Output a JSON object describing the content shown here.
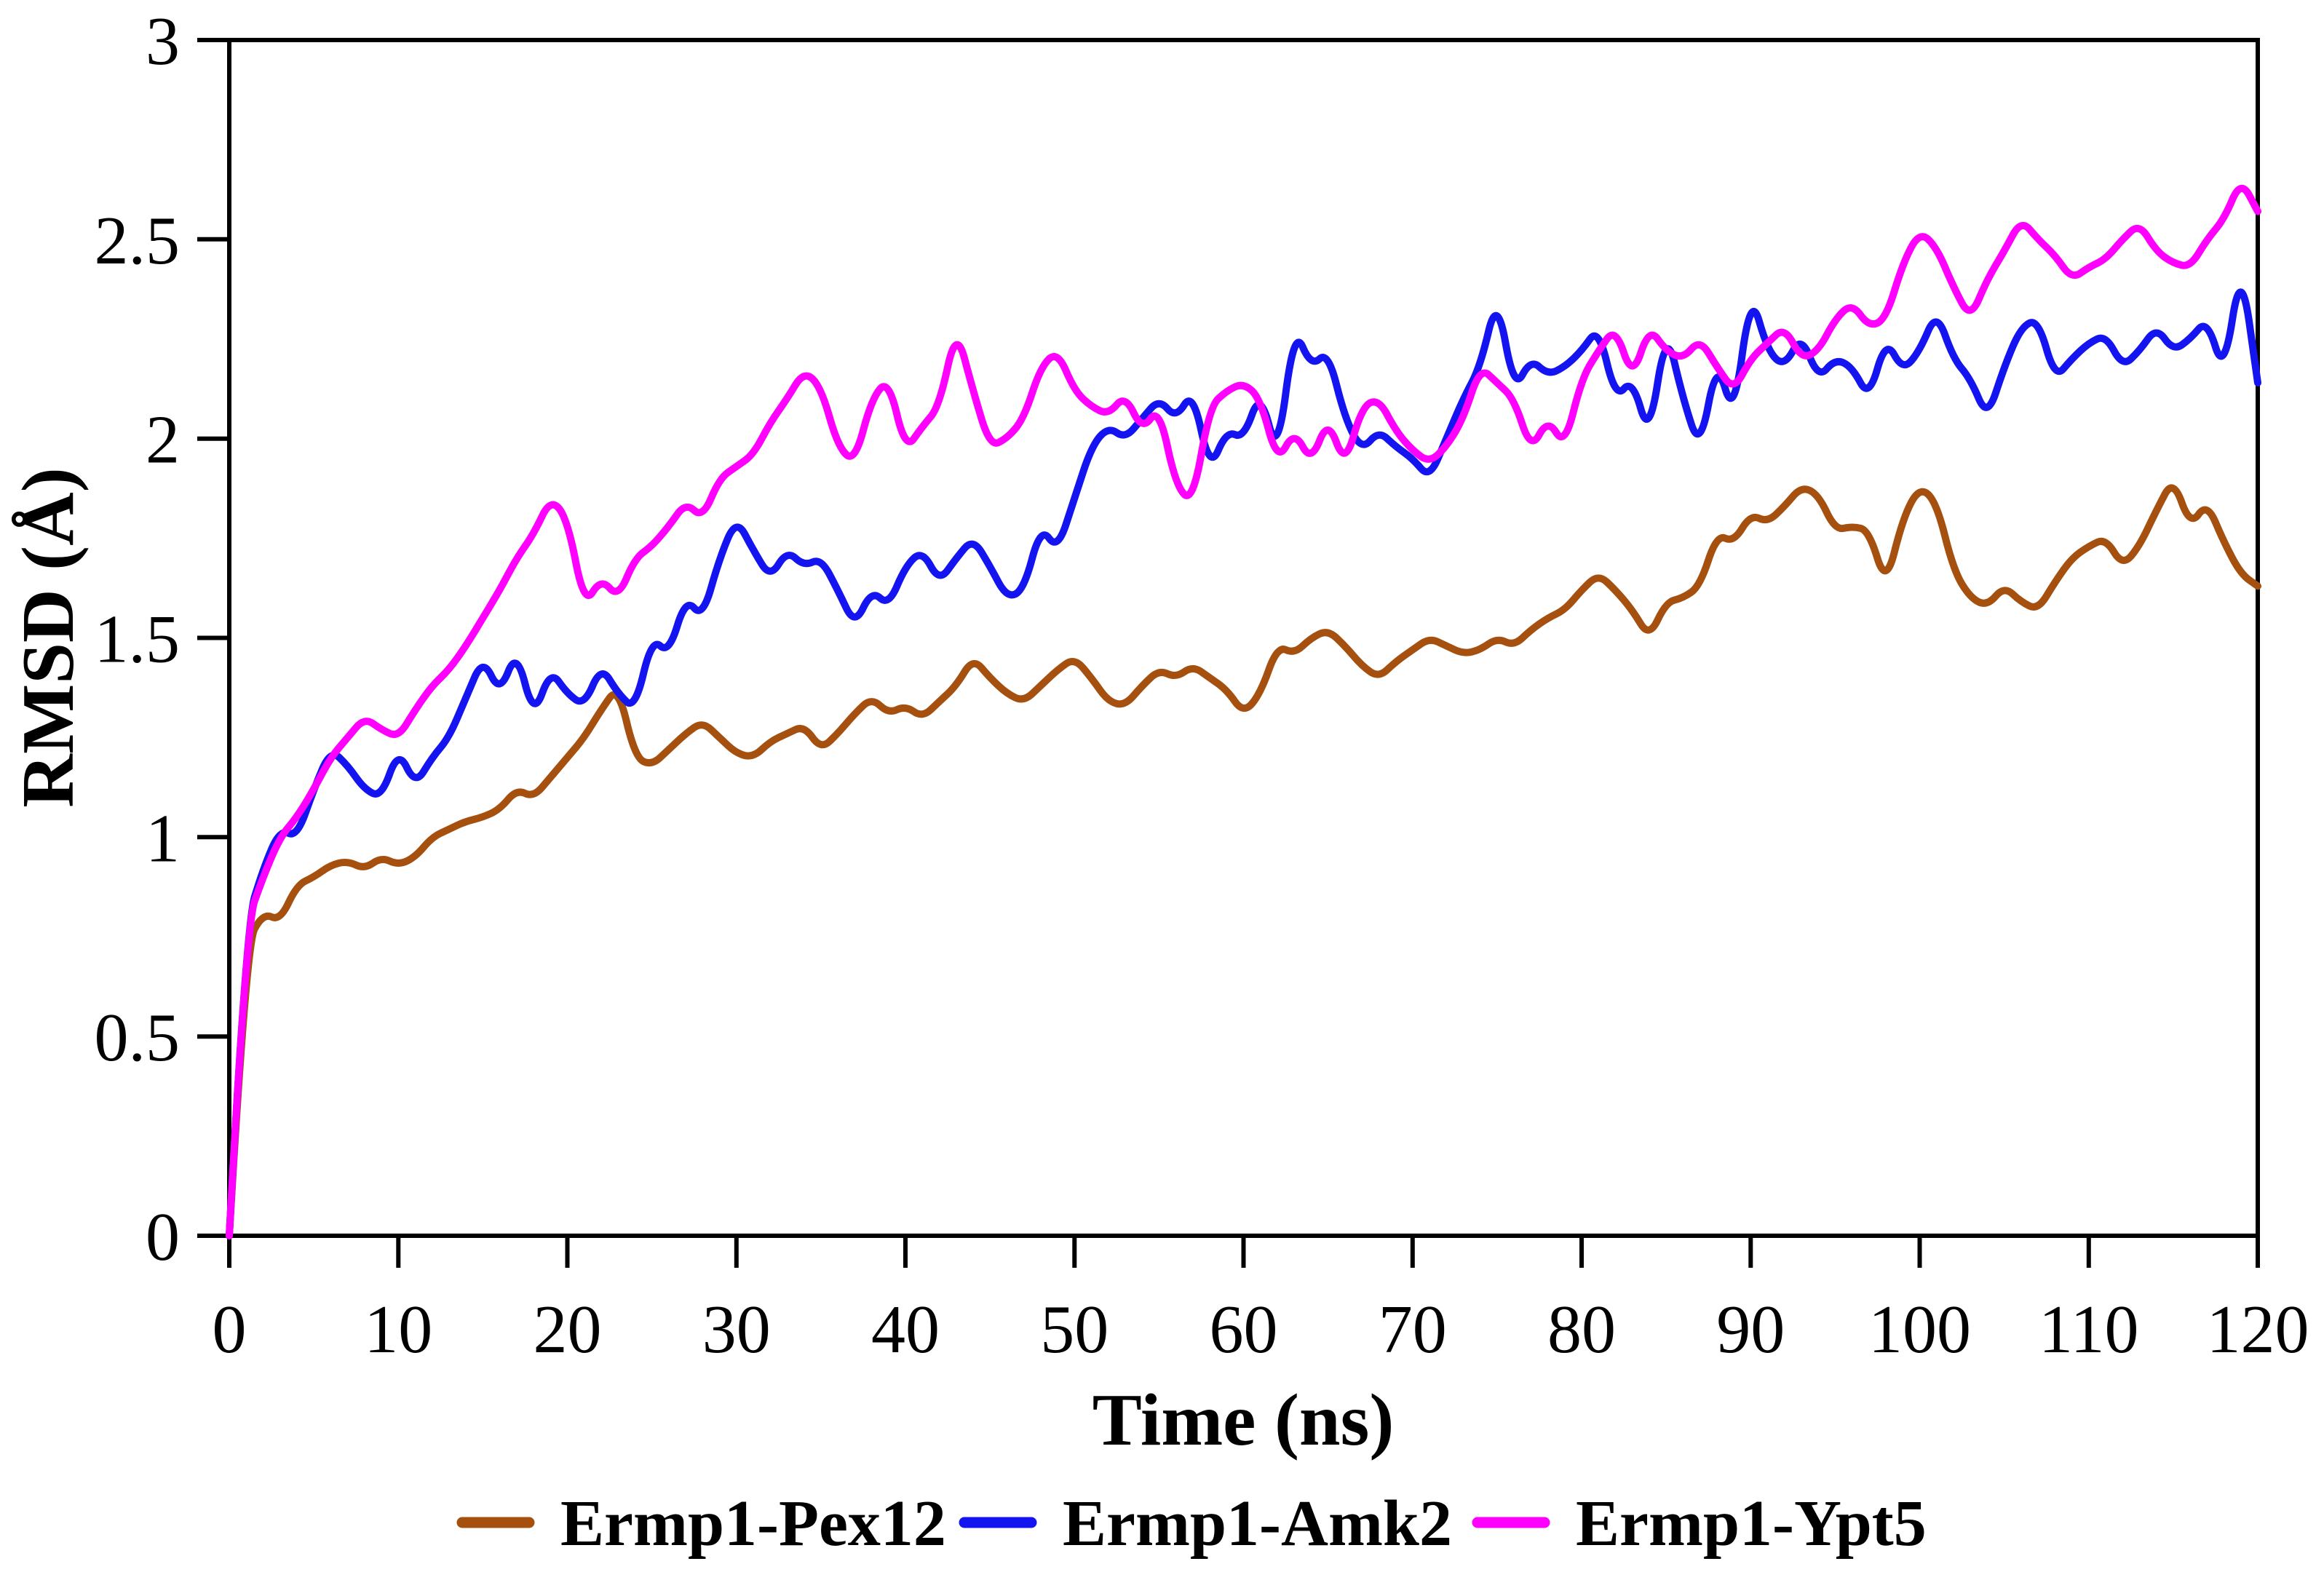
{
  "chart_data": {
    "type": "line",
    "title": "",
    "xlabel": "Time (ns)",
    "ylabel": "RMSD (Å)",
    "xlim": [
      0,
      120
    ],
    "ylim": [
      0,
      3
    ],
    "xticks": [
      0,
      10,
      20,
      30,
      40,
      50,
      60,
      70,
      80,
      90,
      100,
      110,
      120
    ],
    "yticks": [
      0,
      0.5,
      1,
      1.5,
      2,
      2.5,
      3
    ],
    "ytick_labels": [
      "0",
      "0.5",
      "1",
      "1.5",
      "2",
      "2.5",
      "3"
    ],
    "grid": false,
    "legend_position": "bottom",
    "x_step": 1,
    "series": [
      {
        "name": "Ermp1-Pex12",
        "color": "#A5500F",
        "values": [
          0,
          0.73,
          0.81,
          0.79,
          0.88,
          0.9,
          0.93,
          0.94,
          0.92,
          0.95,
          0.93,
          0.95,
          1.0,
          1.02,
          1.04,
          1.05,
          1.07,
          1.12,
          1.1,
          1.15,
          1.2,
          1.25,
          1.32,
          1.38,
          1.2,
          1.18,
          1.22,
          1.26,
          1.29,
          1.25,
          1.21,
          1.2,
          1.24,
          1.26,
          1.28,
          1.22,
          1.26,
          1.31,
          1.35,
          1.31,
          1.33,
          1.3,
          1.34,
          1.38,
          1.45,
          1.4,
          1.36,
          1.34,
          1.38,
          1.42,
          1.45,
          1.4,
          1.34,
          1.33,
          1.38,
          1.42,
          1.4,
          1.43,
          1.4,
          1.37,
          1.31,
          1.36,
          1.48,
          1.46,
          1.5,
          1.52,
          1.48,
          1.43,
          1.4,
          1.44,
          1.47,
          1.5,
          1.48,
          1.46,
          1.47,
          1.5,
          1.48,
          1.52,
          1.55,
          1.57,
          1.62,
          1.66,
          1.62,
          1.57,
          1.5,
          1.59,
          1.6,
          1.63,
          1.76,
          1.74,
          1.81,
          1.79,
          1.83,
          1.88,
          1.86,
          1.77,
          1.78,
          1.77,
          1.63,
          1.8,
          1.88,
          1.84,
          1.67,
          1.6,
          1.58,
          1.63,
          1.59,
          1.57,
          1.64,
          1.7,
          1.73,
          1.75,
          1.68,
          1.73,
          1.82,
          1.9,
          1.78,
          1.84,
          1.74,
          1.66,
          1.63
        ]
      },
      {
        "name": "Ermp1-Amk2",
        "color": "#1414F0",
        "values": [
          0,
          0.78,
          0.92,
          1.02,
          1.0,
          1.12,
          1.22,
          1.18,
          1.12,
          1.1,
          1.22,
          1.13,
          1.2,
          1.25,
          1.35,
          1.45,
          1.36,
          1.47,
          1.3,
          1.42,
          1.36,
          1.33,
          1.43,
          1.36,
          1.32,
          1.5,
          1.46,
          1.6,
          1.55,
          1.7,
          1.8,
          1.72,
          1.65,
          1.72,
          1.68,
          1.7,
          1.62,
          1.53,
          1.62,
          1.58,
          1.68,
          1.72,
          1.64,
          1.7,
          1.75,
          1.68,
          1.6,
          1.62,
          1.78,
          1.72,
          1.85,
          1.98,
          2.03,
          2.0,
          2.05,
          2.1,
          2.05,
          2.12,
          1.92,
          2.02,
          2.0,
          2.12,
          1.95,
          2.28,
          2.18,
          2.22,
          2.05,
          1.97,
          2.02,
          1.98,
          1.95,
          1.9,
          2.0,
          2.1,
          2.18,
          2.36,
          2.12,
          2.2,
          2.16,
          2.18,
          2.22,
          2.28,
          2.1,
          2.15,
          2.0,
          2.28,
          2.1,
          1.97,
          2.2,
          2.05,
          2.37,
          2.22,
          2.18,
          2.26,
          2.15,
          2.2,
          2.18,
          2.1,
          2.25,
          2.17,
          2.22,
          2.32,
          2.2,
          2.15,
          2.05,
          2.18,
          2.28,
          2.3,
          2.15,
          2.2,
          2.24,
          2.26,
          2.18,
          2.22,
          2.28,
          2.22,
          2.25,
          2.3,
          2.16,
          2.44,
          2.14
        ]
      },
      {
        "name": "Ermp1-Ypt5",
        "color": "#FF00FF",
        "values": [
          0,
          0.78,
          0.9,
          1.0,
          1.05,
          1.12,
          1.2,
          1.25,
          1.3,
          1.27,
          1.25,
          1.32,
          1.38,
          1.42,
          1.48,
          1.55,
          1.62,
          1.7,
          1.76,
          1.85,
          1.8,
          1.58,
          1.65,
          1.6,
          1.7,
          1.73,
          1.78,
          1.84,
          1.8,
          1.9,
          1.93,
          1.96,
          2.04,
          2.1,
          2.17,
          2.13,
          1.98,
          1.94,
          2.1,
          2.15,
          1.97,
          2.03,
          2.08,
          2.28,
          2.12,
          1.98,
          2.0,
          2.05,
          2.18,
          2.22,
          2.12,
          2.08,
          2.06,
          2.11,
          2.02,
          2.08,
          1.88,
          1.84,
          2.08,
          2.12,
          2.14,
          2.1,
          1.94,
          2.02,
          1.94,
          2.05,
          1.93,
          2.08,
          2.1,
          2.02,
          1.97,
          1.94,
          1.98,
          2.05,
          2.18,
          2.14,
          2.1,
          1.97,
          2.05,
          1.98,
          2.15,
          2.22,
          2.28,
          2.15,
          2.28,
          2.22,
          2.2,
          2.25,
          2.18,
          2.12,
          2.2,
          2.24,
          2.28,
          2.2,
          2.22,
          2.3,
          2.34,
          2.28,
          2.3,
          2.44,
          2.52,
          2.48,
          2.38,
          2.3,
          2.4,
          2.47,
          2.55,
          2.5,
          2.46,
          2.4,
          2.43,
          2.45,
          2.5,
          2.54,
          2.47,
          2.44,
          2.43,
          2.5,
          2.55,
          2.65,
          2.57
        ]
      }
    ]
  }
}
